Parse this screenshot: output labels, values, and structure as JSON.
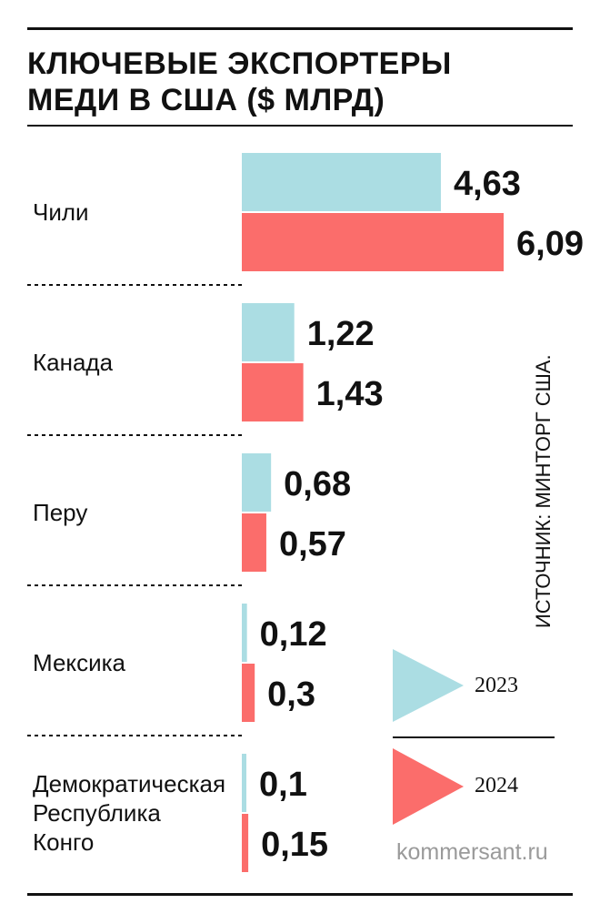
{
  "title_lines": [
    "КЛЮЧЕВЫЕ ЭКСПОРТЕРЫ",
    "МЕДИ В США ($ МЛРД)"
  ],
  "source": "ИСТОЧНИК: МИНТОРГ США.",
  "site": "kommersant.ru",
  "colors": {
    "series_2023": "#ABDDE3",
    "series_2024": "#FB6D6B",
    "text": "#111111",
    "site": "#9a9a9a"
  },
  "chart_data": {
    "type": "bar",
    "orientation": "horizontal",
    "title": "КЛЮЧЕВЫЕ ЭКСПОРТЕРЫ МЕДИ В США ($ МЛРД)",
    "xlabel": "",
    "ylabel": "",
    "categories": [
      [
        "Чили"
      ],
      [
        "Канада"
      ],
      [
        "Перу"
      ],
      [
        "Мексика"
      ],
      [
        "Демократическая",
        "Республика",
        "Конго"
      ]
    ],
    "series": [
      {
        "name": "2023",
        "values": [
          4.63,
          1.22,
          0.68,
          0.12,
          0.1
        ],
        "labels": [
          "4,63",
          "1,22",
          "0,68",
          "0,12",
          "0,1"
        ]
      },
      {
        "name": "2024",
        "values": [
          6.09,
          1.43,
          0.57,
          0.3,
          0.15
        ],
        "labels": [
          "6,09",
          "1,43",
          "0,57",
          "0,3",
          "0,15"
        ]
      }
    ],
    "xlim": [
      0,
      6.09
    ]
  }
}
